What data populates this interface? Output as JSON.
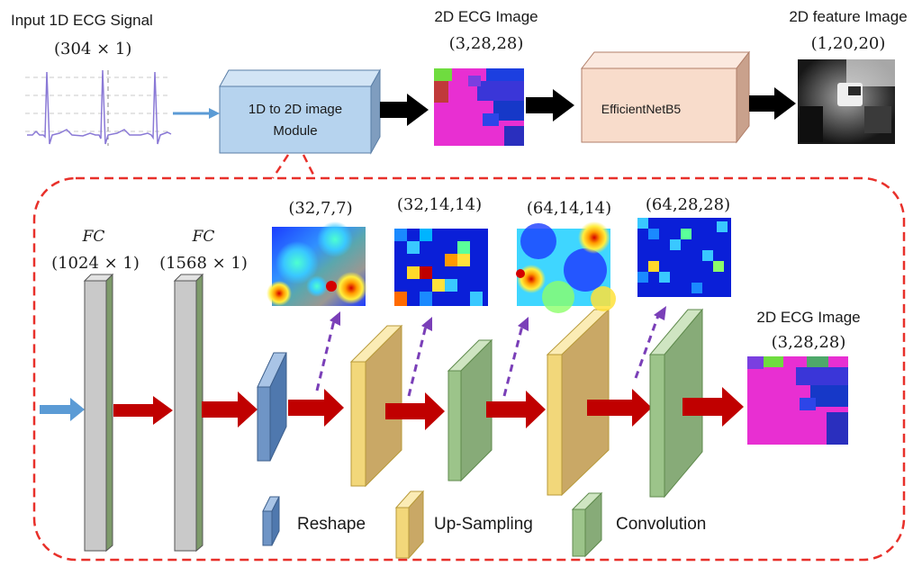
{
  "top": {
    "input_title": "Input 1D ECG Signal",
    "input_dims": "(304 × 1)",
    "module_line1": "1D to 2D image",
    "module_line2": "Module",
    "ecg_title": "2D ECG Image",
    "ecg_dims": "(3,28,28)",
    "effnet_label": "EfficientNetB5",
    "feature_title": "2D feature Image",
    "feature_dims": "(1,20,20)"
  },
  "detail": {
    "fc1_title": "FC",
    "fc1_dims": "(1024 × 1)",
    "fc2_title": "FC",
    "fc2_dims": "(1568 × 1)",
    "maps": [
      {
        "dims": "(32,7,7)"
      },
      {
        "dims": "(32,14,14)"
      },
      {
        "dims": "(64,14,14)"
      },
      {
        "dims": "(64,28,28)"
      }
    ],
    "out_title": "2D ECG Image",
    "out_dims": "(3,28,28)"
  },
  "legend": {
    "reshape": "Reshape",
    "upsampling": "Up-Sampling",
    "convolution": "Convolution"
  },
  "colors": {
    "arrow_red": "#c00000",
    "arrow_blue": "#5b9bd5",
    "dash_red": "#e8302a",
    "dash_purple": "#7a3fb8",
    "fc_gray": "#c9c9c9",
    "reshape_blue": "#6f95c6",
    "upsample_yellow": "#f2d77a",
    "conv_green": "#9cc48a",
    "module_blue": "#b6d3ee",
    "effnet_peach": "#f8dccb"
  }
}
